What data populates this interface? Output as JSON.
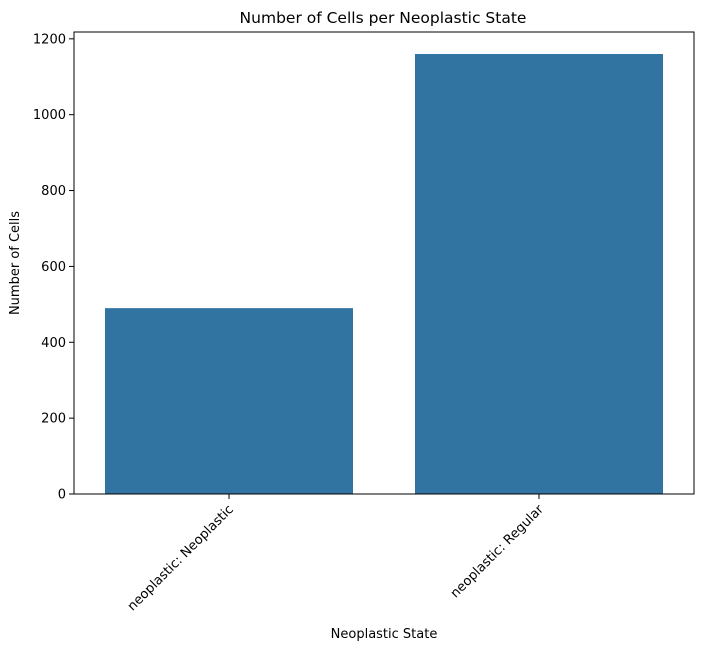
{
  "chart_data": {
    "type": "bar",
    "title": "Number of Cells per Neoplastic State",
    "xlabel": "Neoplastic State",
    "ylabel": "Number of Cells",
    "categories": [
      "neoplastic: Neoplastic",
      "neoplastic: Regular"
    ],
    "values": [
      490,
      1160
    ],
    "ylim": [
      0,
      1218
    ],
    "yticks": [
      0,
      200,
      400,
      600,
      800,
      1000,
      1200
    ],
    "grid": false,
    "legend": "none",
    "bar_color": "#3274a1"
  }
}
